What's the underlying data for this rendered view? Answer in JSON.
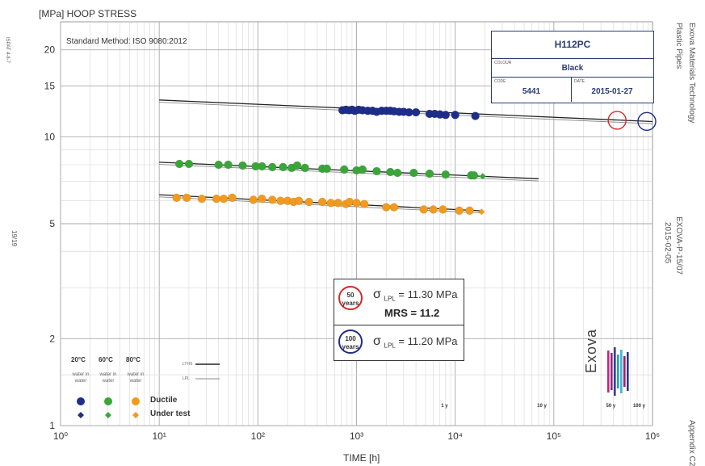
{
  "chart_data": {
    "type": "scatter",
    "title": "HOOP STRESS",
    "ylabel": "[MPa] HOOP STRESS",
    "xlabel": "TIME [h]",
    "x_scale": "log",
    "y_scale": "log",
    "xlim": [
      1,
      1000000
    ],
    "ylim": [
      1,
      25
    ],
    "x_tick_labels": [
      "10⁰",
      "10¹",
      "10²",
      "10³",
      "10⁴",
      "10⁵",
      "10⁶"
    ],
    "y_tick_labels": [
      "1",
      "2",
      "5",
      "10",
      "15",
      "20"
    ],
    "y_tick_values": [
      1,
      2,
      5,
      10,
      15,
      20
    ],
    "series": [
      {
        "name": "20°C",
        "color": "#1f2d8a",
        "marker": "circle",
        "points": [
          [
            720,
            12.35
          ],
          [
            780,
            12.4
          ],
          [
            840,
            12.35
          ],
          [
            900,
            12.4
          ],
          [
            960,
            12.3
          ],
          [
            1050,
            12.4
          ],
          [
            1150,
            12.35
          ],
          [
            1300,
            12.3
          ],
          [
            1450,
            12.3
          ],
          [
            1600,
            12.2
          ],
          [
            1800,
            12.3
          ],
          [
            2000,
            12.3
          ],
          [
            2200,
            12.3
          ],
          [
            2400,
            12.25
          ],
          [
            2700,
            12.2
          ],
          [
            3000,
            12.2
          ],
          [
            3400,
            12.15
          ],
          [
            4000,
            12.15
          ],
          [
            5500,
            12.0
          ],
          [
            6200,
            12.0
          ],
          [
            7000,
            11.95
          ],
          [
            8000,
            11.9
          ],
          [
            10000,
            11.9
          ],
          [
            16000,
            11.8
          ]
        ]
      },
      {
        "name": "60°C",
        "color": "#3aa63a",
        "marker": "circle",
        "points": [
          [
            16,
            8.05
          ],
          [
            20,
            8.05
          ],
          [
            40,
            8.0
          ],
          [
            50,
            8.0
          ],
          [
            70,
            7.95
          ],
          [
            95,
            7.9
          ],
          [
            110,
            7.9
          ],
          [
            140,
            7.85
          ],
          [
            180,
            7.85
          ],
          [
            220,
            7.8
          ],
          [
            250,
            7.95
          ],
          [
            300,
            7.8
          ],
          [
            450,
            7.75
          ],
          [
            500,
            7.75
          ],
          [
            750,
            7.7
          ],
          [
            1000,
            7.65
          ],
          [
            1150,
            7.7
          ],
          [
            1600,
            7.6
          ],
          [
            2200,
            7.55
          ],
          [
            2600,
            7.5
          ],
          [
            3800,
            7.5
          ],
          [
            5500,
            7.45
          ],
          [
            8000,
            7.4
          ],
          [
            14500,
            7.35
          ],
          [
            15500,
            7.35
          ]
        ]
      },
      {
        "name": "80°C",
        "color": "#f29a1e",
        "marker": "circle",
        "points": [
          [
            15,
            6.15
          ],
          [
            19,
            6.15
          ],
          [
            27,
            6.1
          ],
          [
            38,
            6.1
          ],
          [
            45,
            6.1
          ],
          [
            55,
            6.15
          ],
          [
            90,
            6.05
          ],
          [
            110,
            6.1
          ],
          [
            140,
            6.05
          ],
          [
            170,
            6.0
          ],
          [
            200,
            6.0
          ],
          [
            230,
            5.95
          ],
          [
            260,
            6.0
          ],
          [
            330,
            5.95
          ],
          [
            450,
            5.95
          ],
          [
            550,
            5.9
          ],
          [
            650,
            5.9
          ],
          [
            780,
            5.85
          ],
          [
            850,
            5.95
          ],
          [
            1000,
            5.9
          ],
          [
            1200,
            5.85
          ],
          [
            2000,
            5.7
          ],
          [
            2400,
            5.7
          ],
          [
            4800,
            5.6
          ],
          [
            6000,
            5.6
          ],
          [
            7500,
            5.6
          ],
          [
            11000,
            5.55
          ],
          [
            14000,
            5.55
          ]
        ]
      }
    ],
    "under_test": [
      {
        "name": "60°C",
        "x": 19000,
        "y": 7.3,
        "color": "#3aa63a"
      },
      {
        "name": "80°C",
        "x": 18500,
        "y": 5.5,
        "color": "#f29a1e"
      }
    ],
    "regression_lines": [
      {
        "x": [
          10,
          1000000
        ],
        "y": [
          13.3,
          11.2
        ]
      },
      {
        "x": [
          10,
          70000
        ],
        "y": [
          8.1,
          7.1
        ]
      },
      {
        "x": [
          10,
          18000
        ],
        "y": [
          6.25,
          5.5
        ]
      }
    ],
    "markers": [
      {
        "x": 438000,
        "y": 11.4,
        "color": "#d42a2a"
      },
      {
        "x": 876000,
        "y": 11.3,
        "color": "#1f2d8a"
      }
    ],
    "year_labels": [
      {
        "text": "1 y",
        "x": 8760
      },
      {
        "text": "10 y",
        "x": 87600
      },
      {
        "text": "50 y",
        "x": 438000
      },
      {
        "text": "100 y",
        "x": 876000
      }
    ]
  },
  "header": {
    "ylabel": "[MPa] HOOP STRESS",
    "method": "Standard Method: ISO 9080:2012",
    "xlabel": "TIME [h]"
  },
  "side": {
    "left_top": "ISPAT 4-II-7",
    "left_mid": "19/19",
    "right_top": "Plastic Pipes",
    "right_top2": "Exova Materials Technology",
    "right_mid": "EXOVA-P-15/07",
    "right_mid2": "2015-02-05",
    "right_bottom": "Appendix C2"
  },
  "infobox": {
    "name": "H112PC",
    "colour_label": "COLOUR",
    "colour": "Black",
    "code_label": "CODE",
    "code": "5441",
    "date_label": "DATE",
    "date": "2015-01-27"
  },
  "results": {
    "circle50_top": "50",
    "circle50_bottom": "years",
    "sigma50": "σ",
    "sigma50_sub": "LPL",
    "sigma50_val": "= 11.30 MPa",
    "mrs": "MRS =  11.2",
    "circle100_top": "100",
    "circle100_bottom": "years",
    "sigma100": "σ",
    "sigma100_sub": "LPL",
    "sigma100_val": "= 11.20 MPa"
  },
  "legend": {
    "t20": "20°C",
    "t60": "60°C",
    "t80": "80°C",
    "medium20": "water in water",
    "medium60": "water in water",
    "medium80": "water in water",
    "ltHS": "LTHS",
    "lpl": "LPL",
    "ductile": "Ductile",
    "under_test": "Under test"
  },
  "logo": {
    "text": "Exova",
    "colors": [
      "#c2257a",
      "#8a2b8a",
      "#3b3c8f",
      "#1aa2c8",
      "#44b5d6",
      "#a3216f",
      "#2b3a7a"
    ]
  }
}
